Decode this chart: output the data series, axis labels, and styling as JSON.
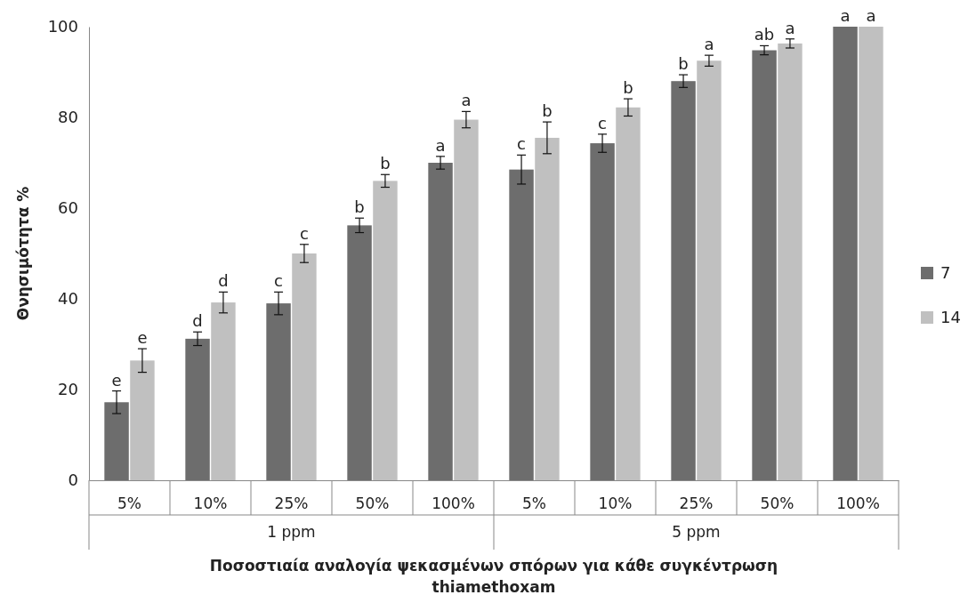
{
  "chart_data": {
    "type": "bar",
    "ylabel": "Θνησιμότητα %",
    "xlabel": "Ποσοστιαία αναλογία ψεκασμένων σπόρων για κάθε συγκέντρωση thiamethoxam",
    "categories": [
      "5%",
      "10%",
      "25%",
      "50%",
      "100%",
      "5%",
      "10%",
      "25%",
      "50%",
      "100%"
    ],
    "annotations": [
      "1 ppm",
      "5 ppm"
    ],
    "series": [
      {
        "name": "7",
        "color": "#6d6d6d",
        "values": [
          17.2,
          31.2,
          39,
          56.2,
          70,
          68.5,
          74.3,
          88,
          94.8,
          100
        ],
        "errors": [
          2.5,
          1.5,
          2.5,
          1.6,
          1.4,
          3.2,
          2,
          1.4,
          1,
          null
        ],
        "value_labels": [
          "e",
          "d",
          "c",
          "b",
          "a",
          "c",
          "c",
          "b",
          "ab",
          "a"
        ]
      },
      {
        "name": "14",
        "color": "#c0c0c0",
        "values": [
          26.4,
          39.2,
          50,
          66,
          79.5,
          75.5,
          82.2,
          92.5,
          96.3,
          100
        ],
        "errors": [
          2.6,
          2.3,
          2,
          1.4,
          1.8,
          3.5,
          1.9,
          1.2,
          1,
          null
        ],
        "value_labels": [
          "e",
          "d",
          "c",
          "b",
          "a",
          "b",
          "b",
          "a",
          "a",
          "a"
        ]
      }
    ],
    "ylim": [
      0,
      100
    ],
    "yticks": [
      0,
      20,
      40,
      60,
      80,
      100
    ],
    "grid": false,
    "legend": "right"
  }
}
